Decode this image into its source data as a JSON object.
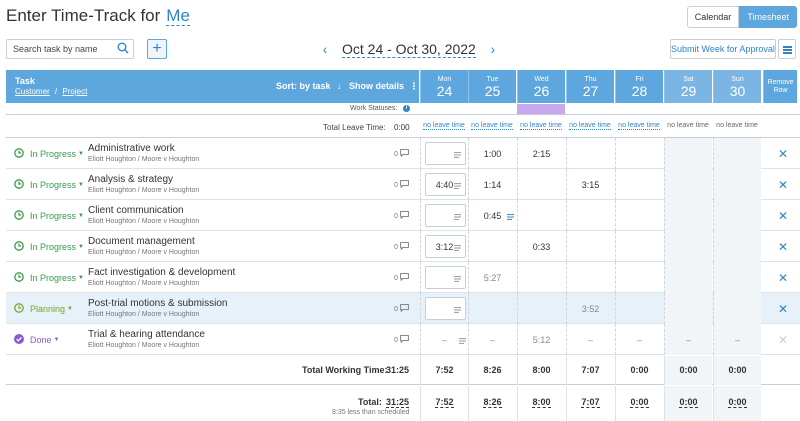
{
  "page": {
    "title": "Enter Time-Track for",
    "user": "Me",
    "view_tabs": [
      {
        "label": "Calendar",
        "active": false
      },
      {
        "label": "Timesheet",
        "active": true
      }
    ],
    "search_placeholder": "Search task by name",
    "add_icon": "plus-icon",
    "week_range": "Oct 24 - Oct 30, 2022",
    "submit_label": "Submit Week for Approval"
  },
  "header": {
    "task": "Task",
    "customer": "Customer",
    "separator": "/",
    "project": "Project",
    "sort": "Sort: by task",
    "show_details": "Show details",
    "remove_row": "Remove Row",
    "days": [
      {
        "name": "Mon",
        "date": "24",
        "weekend": false
      },
      {
        "name": "Tue",
        "date": "25",
        "weekend": false
      },
      {
        "name": "Wed",
        "date": "26",
        "weekend": false
      },
      {
        "name": "Thu",
        "date": "27",
        "weekend": false
      },
      {
        "name": "Fri",
        "date": "28",
        "weekend": false
      },
      {
        "name": "Sat",
        "date": "29",
        "weekend": true
      },
      {
        "name": "Sun",
        "date": "30",
        "weekend": true
      }
    ]
  },
  "work_status": {
    "label": "Work Statuses:",
    "colors": [
      "#ffffff",
      "#ffffff",
      "#c9a8f0",
      "#ffffff",
      "#ffffff",
      "#ffffff",
      "#ffffff"
    ]
  },
  "leave": {
    "label": "Total Leave Time:",
    "total": "0:00",
    "cells": [
      "no leave time",
      "no leave time",
      "no leave time",
      "no leave time",
      "no leave time",
      "no leave time",
      "no leave time"
    ]
  },
  "rows": [
    {
      "status": "In Progress",
      "status_type": "progress",
      "name": "Administrative work",
      "client": "Eliott Houghton / Moore v Houghton",
      "comments": "0",
      "cells": [
        {
          "v": "",
          "box": true
        },
        {
          "v": "1:00"
        },
        {
          "v": "2:15"
        },
        {
          "v": ""
        },
        {
          "v": ""
        },
        {
          "v": ""
        },
        {
          "v": ""
        }
      ],
      "removable": true,
      "highlight": false
    },
    {
      "status": "In Progress",
      "status_type": "progress",
      "name": "Analysis & strategy",
      "client": "Eliott Houghton / Moore v Houghton",
      "comments": "0",
      "cells": [
        {
          "v": "4:40",
          "box": true
        },
        {
          "v": "1:14"
        },
        {
          "v": ""
        },
        {
          "v": "3:15"
        },
        {
          "v": ""
        },
        {
          "v": ""
        },
        {
          "v": ""
        }
      ],
      "removable": true,
      "highlight": false
    },
    {
      "status": "In Progress",
      "status_type": "progress",
      "name": "Client communication",
      "client": "Eliott Houghton / Moore v Houghton",
      "comments": "0",
      "cells": [
        {
          "v": "",
          "box": true
        },
        {
          "v": "0:45",
          "note": true
        },
        {
          "v": ""
        },
        {
          "v": ""
        },
        {
          "v": ""
        },
        {
          "v": ""
        },
        {
          "v": ""
        }
      ],
      "removable": true,
      "highlight": false
    },
    {
      "status": "In Progress",
      "status_type": "progress",
      "name": "Document management",
      "client": "Eliott Houghton / Moore v Houghton",
      "comments": "0",
      "cells": [
        {
          "v": "3:12",
          "box": true
        },
        {
          "v": ""
        },
        {
          "v": "0:33"
        },
        {
          "v": ""
        },
        {
          "v": ""
        },
        {
          "v": ""
        },
        {
          "v": ""
        }
      ],
      "removable": true,
      "highlight": false
    },
    {
      "status": "In Progress",
      "status_type": "progress",
      "name": "Fact investigation & development",
      "client": "Eliott Houghton / Moore v Houghton",
      "comments": "0",
      "cells": [
        {
          "v": "",
          "box": true
        },
        {
          "v": "5:27",
          "dim": true
        },
        {
          "v": ""
        },
        {
          "v": ""
        },
        {
          "v": ""
        },
        {
          "v": ""
        },
        {
          "v": ""
        }
      ],
      "removable": true,
      "highlight": false
    },
    {
      "status": "Planning",
      "status_type": "planning",
      "name": "Post-trial motions & submission",
      "client": "Eliott Houghton / Moore v Houghton",
      "comments": "0",
      "cells": [
        {
          "v": "",
          "box": true
        },
        {
          "v": ""
        },
        {
          "v": ""
        },
        {
          "v": "3:52",
          "dim": true
        },
        {
          "v": ""
        },
        {
          "v": ""
        },
        {
          "v": ""
        }
      ],
      "removable": true,
      "highlight": true
    },
    {
      "status": "Done",
      "status_type": "done",
      "name": "Trial & hearing attendance",
      "client": "Eliott Houghton / Moore v Houghton",
      "comments": "0",
      "cells": [
        {
          "v": "–",
          "note": true,
          "dim": true
        },
        {
          "v": "–",
          "dim": true
        },
        {
          "v": "5:12",
          "dim": true
        },
        {
          "v": "–",
          "dim": true
        },
        {
          "v": "–",
          "dim": true
        },
        {
          "v": "–",
          "dim": true
        },
        {
          "v": "–",
          "dim": true
        }
      ],
      "removable": false,
      "highlight": false
    }
  ],
  "totals": {
    "working_label": "Total Working Time:",
    "working_total": "31:25",
    "working": [
      "7:52",
      "8:26",
      "8:00",
      "7:07",
      "0:00",
      "0:00",
      "0:00"
    ],
    "total_label": "Total:",
    "total": "31:25",
    "total_note": "8:35 less than scheduled",
    "totals": [
      "7:52",
      "8:26",
      "8:00",
      "7:07",
      "0:00",
      "0:00",
      "0:00"
    ]
  },
  "colors": {
    "accent": "#2f84c8",
    "header_bg": "#5da6de",
    "in_progress": "#3a9a4a",
    "planning": "#7aa62a",
    "done": "#8a5ad6",
    "highlight_row": "#e6f1fa"
  }
}
